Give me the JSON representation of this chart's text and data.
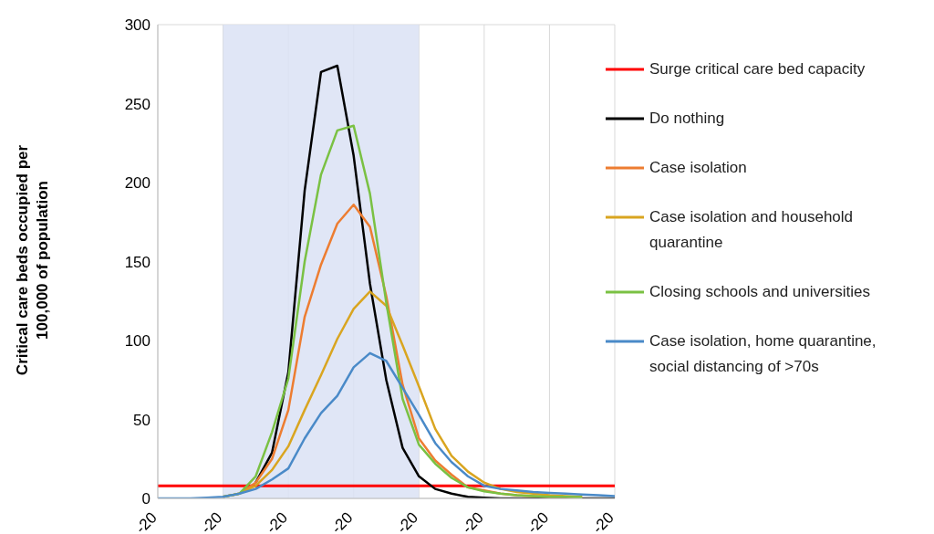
{
  "chart_data": {
    "type": "line",
    "ylabel": "Critical care beds occupied per 100,000 of population",
    "categories": [
      "-20",
      null,
      null,
      null,
      "-20",
      null,
      null,
      null,
      "-20",
      null,
      null,
      null,
      "-20",
      null,
      null,
      null,
      "-20",
      null,
      null,
      null,
      "-20",
      null,
      null,
      null,
      "-20",
      null,
      null,
      null,
      "-20"
    ],
    "ylim": [
      0,
      300
    ],
    "yticks": [
      0,
      50,
      100,
      150,
      200,
      250,
      300
    ],
    "grid": true,
    "legend": "right",
    "marker": "none",
    "line_style": "solid",
    "ref_lines": [
      {
        "axis": "y",
        "value": 8,
        "label": "Surge critical care bed capacity",
        "color": "#ff0000"
      }
    ],
    "series": [
      {
        "name": "Do nothing",
        "color": "#000000",
        "values": [
          null,
          null,
          null,
          null,
          null,
          null,
          10,
          29,
          80,
          195,
          270,
          274,
          217,
          136,
          75,
          32,
          14,
          6,
          3,
          1,
          0.5,
          0,
          0,
          0,
          0,
          0,
          0,
          0,
          0
        ]
      },
      {
        "name": "Case isolation",
        "color": "#ed7d31",
        "values": [
          null,
          null,
          null,
          null,
          1,
          3,
          10,
          25,
          56,
          115,
          148,
          174,
          186,
          172,
          128,
          72,
          38,
          24,
          15,
          7,
          5,
          3,
          2,
          1.5,
          1,
          1,
          0.5,
          null,
          null
        ]
      },
      {
        "name": "Case isolation and household quarantine",
        "color": "#d9a520",
        "values": [
          null,
          null,
          null,
          null,
          1,
          3,
          8,
          18,
          33,
          56,
          78,
          101,
          120,
          131,
          122,
          97,
          71,
          44,
          27,
          17,
          10,
          6,
          4,
          3,
          2,
          1.5,
          1,
          null,
          null
        ]
      },
      {
        "name": "Closing schools and universities",
        "color": "#7ac143",
        "values": [
          null,
          null,
          null,
          null,
          1,
          3,
          14,
          42,
          76,
          150,
          205,
          233,
          236,
          193,
          124,
          63,
          34,
          22,
          13,
          7,
          4.5,
          3,
          2,
          1.5,
          1,
          1,
          0.7,
          null,
          null
        ]
      },
      {
        "name": "Case isolation, home quarantine, social distancing of >70s",
        "color": "#4a8ac8",
        "values": [
          0,
          0,
          0,
          0.5,
          1,
          3,
          6,
          12,
          19,
          38,
          54,
          65,
          83,
          92,
          87,
          70,
          53,
          35,
          23,
          14,
          8,
          6,
          5,
          4,
          3.5,
          3,
          2.5,
          2,
          1.5
        ]
      }
    ]
  }
}
